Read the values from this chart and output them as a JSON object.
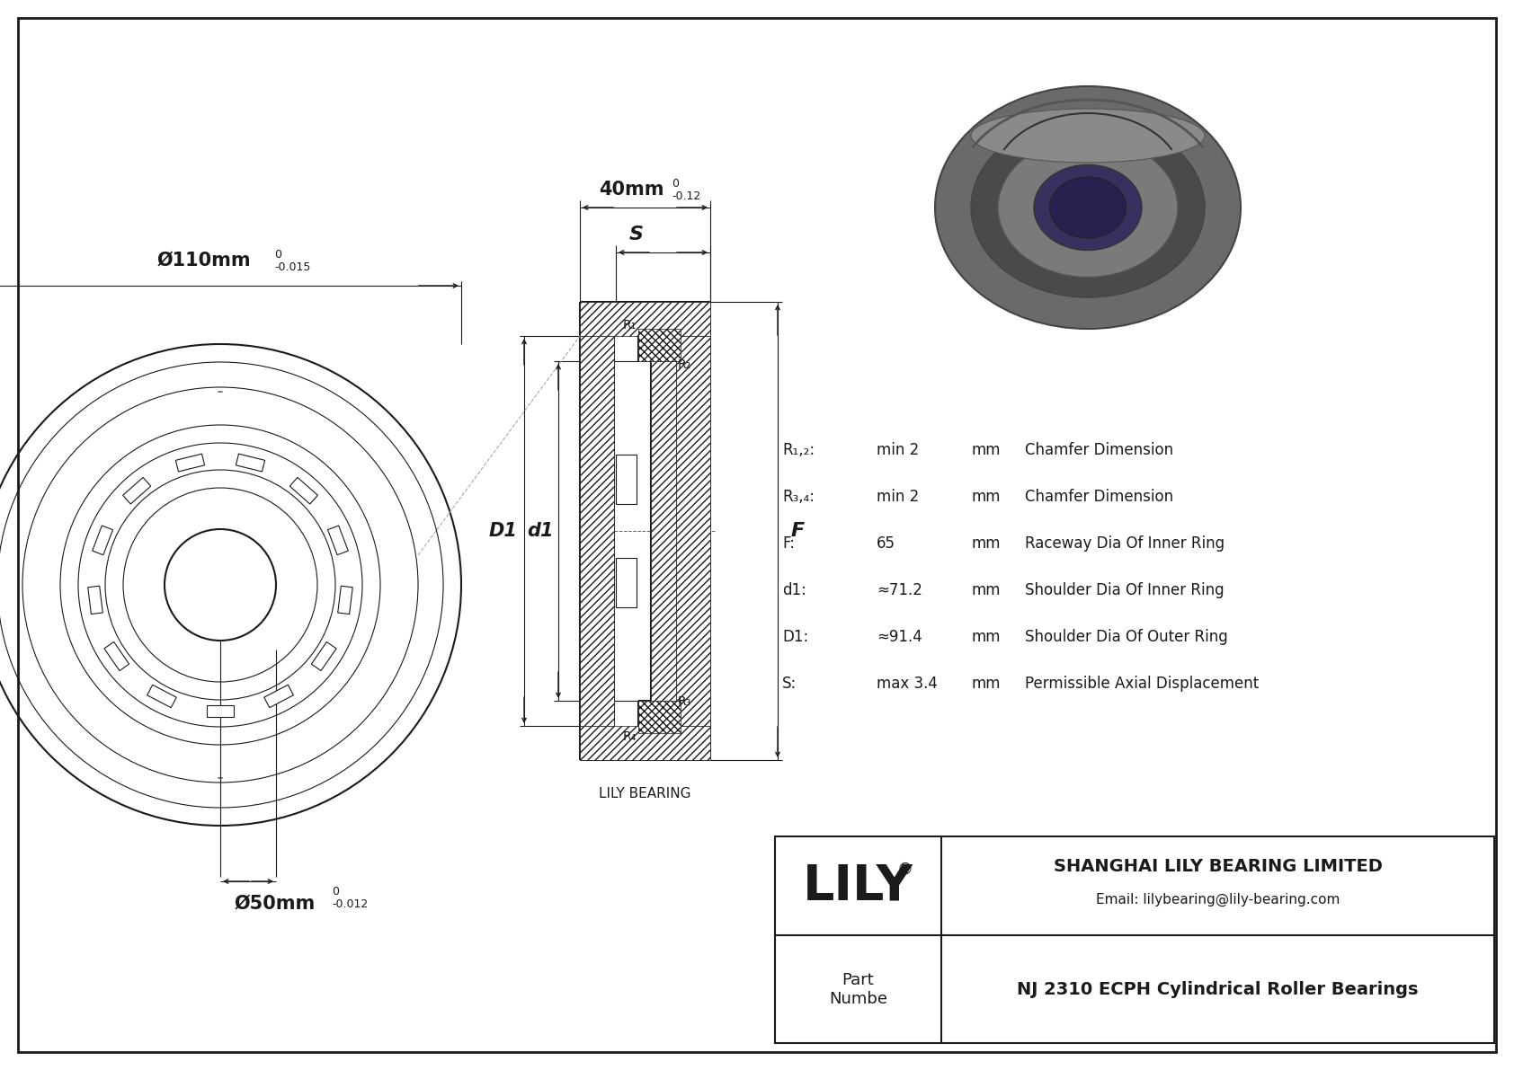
{
  "bg_color": "#ffffff",
  "drawing_color": "#1a1a1a",
  "title": "NJ 2310 ECPH Cylindrical Roller Bearings",
  "company": "SHANGHAI LILY BEARING LIMITED",
  "email": "Email: lilybearing@lily-bearing.com",
  "part_label": "Part\nNumbe",
  "logo": "LILY",
  "logo_reg": "®",
  "lily_bearing_label": "LILY BEARING",
  "dim_OD_label": "Ø110mm",
  "dim_OD_tol": "-0.015",
  "dim_OD_sup": "0",
  "dim_ID_label": "Ø50mm",
  "dim_ID_tol": "-0.012",
  "dim_ID_sup": "0",
  "dim_W_label": "40mm",
  "dim_W_tol": "-0.12",
  "dim_W_sup": "0",
  "spec_rows": [
    [
      "R₁,₂:",
      "min 2",
      "mm",
      "Chamfer Dimension"
    ],
    [
      "R₃,₄:",
      "min 2",
      "mm",
      "Chamfer Dimension"
    ],
    [
      "F:",
      "65",
      "mm",
      "Raceway Dia Of Inner Ring"
    ],
    [
      "d1:",
      "≈71.2",
      "mm",
      "Shoulder Dia Of Inner Ring"
    ],
    [
      "D1:",
      "≈91.4",
      "mm",
      "Shoulder Dia Of Outer Ring"
    ],
    [
      "S:",
      "max 3.4",
      "mm",
      "Permissible Axial Displacement"
    ]
  ],
  "label_S": "S",
  "label_D1": "D1",
  "label_d1": "d1",
  "label_F": "F",
  "label_R1": "R₁",
  "label_R2": "R₂",
  "label_R3": "R₃",
  "label_R4": "R₄"
}
